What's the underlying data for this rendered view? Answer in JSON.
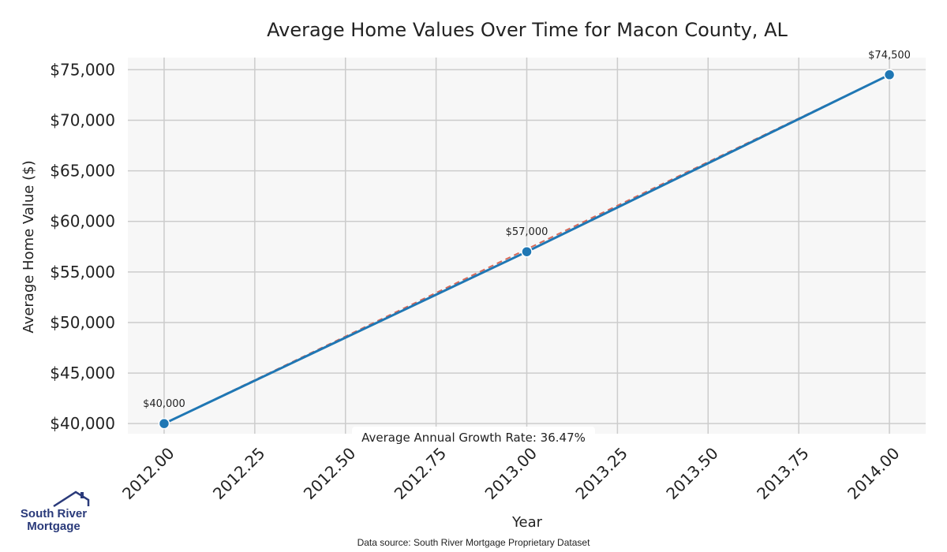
{
  "chart_data": {
    "type": "line",
    "title": "Average Home Values Over Time for Macon County, AL",
    "xlabel": "Year",
    "ylabel": "Average Home Value ($)",
    "x": [
      2012,
      2013,
      2014
    ],
    "series": [
      {
        "values": [
          40000,
          57000,
          74500
        ],
        "color": "#1f77b4"
      }
    ],
    "trend_color": "#d66a5a",
    "data_labels": [
      "$40,000",
      "$57,000",
      "$74,500"
    ],
    "xlim": [
      2011.9,
      2014.1
    ],
    "ylim": [
      39000,
      76200
    ],
    "x_ticks": [
      2012.0,
      2012.25,
      2012.5,
      2012.75,
      2013.0,
      2013.25,
      2013.5,
      2013.75,
      2014.0
    ],
    "x_tick_labels": [
      "2012.00",
      "2012.25",
      "2012.50",
      "2012.75",
      "2013.00",
      "2013.25",
      "2013.50",
      "2013.75",
      "2014.00"
    ],
    "y_ticks": [
      40000,
      45000,
      50000,
      55000,
      60000,
      65000,
      70000,
      75000
    ],
    "y_tick_labels": [
      "$40,000",
      "$45,000",
      "$50,000",
      "$55,000",
      "$60,000",
      "$65,000",
      "$70,000",
      "$75,000"
    ],
    "annotation": "Average Annual Growth Rate: 36.47%",
    "grid": true,
    "plot_background": "#f7f7f7"
  },
  "logo": {
    "line1": "South River",
    "line2": "Mortgage",
    "color": "#2a3a7a"
  },
  "source_note": "Data source: South River Mortgage Proprietary Dataset"
}
